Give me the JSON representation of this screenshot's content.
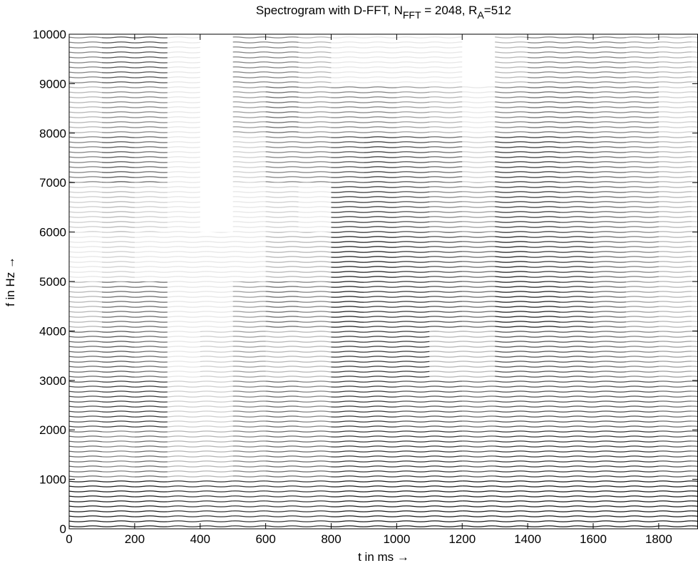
{
  "chart_data": {
    "type": "spectrogram",
    "title": [
      "Spectrogram with D-FFT,  N",
      "FFT",
      " = 2048, R",
      "A",
      "=512"
    ],
    "xlabel": "t in ms →",
    "ylabel": "f in Hz →",
    "xlim": [
      0,
      1920
    ],
    "ylim": [
      0,
      10000
    ],
    "xticks": [
      0,
      200,
      400,
      600,
      800,
      1000,
      1200,
      1400,
      1600,
      1800
    ],
    "yticks": [
      0,
      1000,
      2000,
      3000,
      4000,
      5000,
      6000,
      7000,
      8000,
      9000,
      10000
    ],
    "xbins": [
      0,
      100,
      200,
      300,
      400,
      500,
      600,
      700,
      800,
      900,
      1000,
      1100,
      1200,
      1300,
      1400,
      1500,
      1600,
      1700,
      1800,
      1900,
      1920
    ],
    "ybins": [
      0,
      1000,
      2000,
      3000,
      4000,
      5000,
      6000,
      7000,
      8000,
      9000,
      10000
    ],
    "color": "#000000",
    "z": [
      [
        0.9,
        0.6,
        0.7,
        0.6,
        0.3,
        0.1,
        0.2,
        0.5,
        0.3,
        0.5
      ],
      [
        0.9,
        0.5,
        0.8,
        0.7,
        0.6,
        0.2,
        0.3,
        0.7,
        0.5,
        0.7
      ],
      [
        0.9,
        0.6,
        0.8,
        0.6,
        0.6,
        0.1,
        0.2,
        0.6,
        0.5,
        0.7
      ],
      [
        0.8,
        0.3,
        0.2,
        0.1,
        0.1,
        0.1,
        0.1,
        0.1,
        0.1,
        0.1
      ],
      [
        0.8,
        0.3,
        0.2,
        0.2,
        0.1,
        0.1,
        0,
        0,
        0,
        0
      ],
      [
        0.8,
        0.5,
        0.5,
        0.4,
        0.4,
        0.1,
        0.1,
        0.2,
        0.4,
        0.5
      ],
      [
        0.8,
        0.6,
        0.6,
        0.3,
        0.6,
        0.3,
        0.2,
        0.5,
        0.6,
        0.5
      ],
      [
        0.8,
        0.6,
        0.5,
        0.3,
        0.5,
        0.3,
        0.1,
        0.5,
        0.4,
        0.3
      ],
      [
        0.9,
        0.8,
        0.8,
        0.8,
        0.9,
        0.9,
        0.8,
        0.7,
        0.5,
        0.1
      ],
      [
        0.9,
        0.8,
        0.8,
        0.8,
        0.8,
        0.9,
        0.8,
        0.8,
        0.5,
        0.1
      ],
      [
        0.9,
        0.8,
        0.7,
        0.8,
        0.8,
        0.8,
        0.7,
        0.7,
        0.4,
        0.1
      ],
      [
        0.9,
        0.8,
        0.7,
        0.3,
        0.7,
        0.7,
        0.5,
        0.6,
        0.3,
        0.1
      ],
      [
        0.9,
        0.7,
        0.6,
        0.3,
        0.6,
        0.6,
        0.4,
        0.2,
        0.1,
        0
      ],
      [
        0.9,
        0.8,
        0.7,
        0.7,
        0.9,
        0.9,
        0.8,
        0.8,
        0.5,
        0.3
      ],
      [
        0.9,
        0.8,
        0.7,
        0.7,
        0.9,
        0.8,
        0.8,
        0.8,
        0.6,
        0.5
      ],
      [
        0.9,
        0.8,
        0.7,
        0.7,
        0.8,
        0.8,
        0.7,
        0.7,
        0.6,
        0.5
      ],
      [
        0.9,
        0.8,
        0.7,
        0.6,
        0.6,
        0.6,
        0.6,
        0.6,
        0.5,
        0.5
      ],
      [
        0.9,
        0.8,
        0.7,
        0.5,
        0.4,
        0.5,
        0.5,
        0.5,
        0.5,
        0.4
      ],
      [
        0.9,
        0.7,
        0.6,
        0.4,
        0.3,
        0.3,
        0.3,
        0.3,
        0.2,
        0.3
      ],
      [
        0.9,
        0.6,
        0.5,
        0.3,
        0.2,
        0.2,
        0.2,
        0.2,
        0.2,
        0.2
      ]
    ]
  }
}
